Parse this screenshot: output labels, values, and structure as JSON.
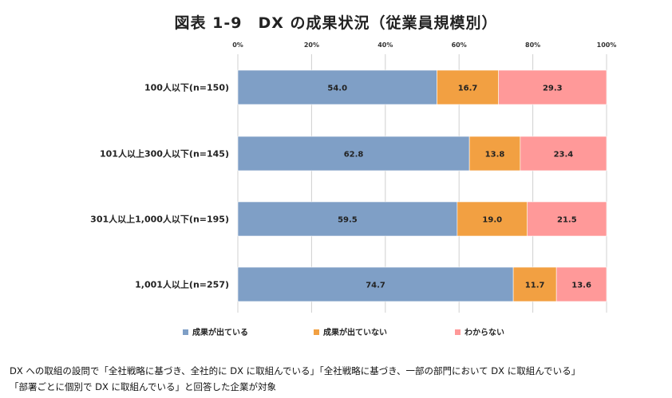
{
  "title": "図表 1-9　DX の成果状況（従業員規模別）",
  "chart_data": {
    "type": "bar",
    "stacked": true,
    "orientation": "horizontal",
    "percent": true,
    "categories": [
      "100人以下(n=150)",
      "101人以上300人以下(n=145)",
      "301人以上1,000人以下(n=195)",
      "1,001人以上(n=257)"
    ],
    "series": [
      {
        "name": "成果が出ている",
        "values": [
          54.0,
          62.8,
          59.5,
          74.7
        ],
        "color": "#7f9fc6"
      },
      {
        "name": "成果が出ていない",
        "values": [
          16.7,
          13.8,
          19.0,
          11.7
        ],
        "color": "#f2a042"
      },
      {
        "name": "わからない",
        "values": [
          29.3,
          23.4,
          21.5,
          13.6
        ],
        "color": "#ff9999"
      }
    ],
    "xlim": [
      0,
      100
    ],
    "ticks": [
      "0%",
      "20%",
      "40%",
      "60%",
      "80%",
      "100%"
    ],
    "grid": true,
    "legend": "bottom"
  },
  "notes": [
    "DX への取組の設問で「全社戦略に基づき、全社的に DX に取組んでいる」「全社戦略に基づき、一部の部門において DX に取組んでいる」",
    "「部署ごとに個別で DX に取組んでいる」と回答した企業が対象"
  ]
}
